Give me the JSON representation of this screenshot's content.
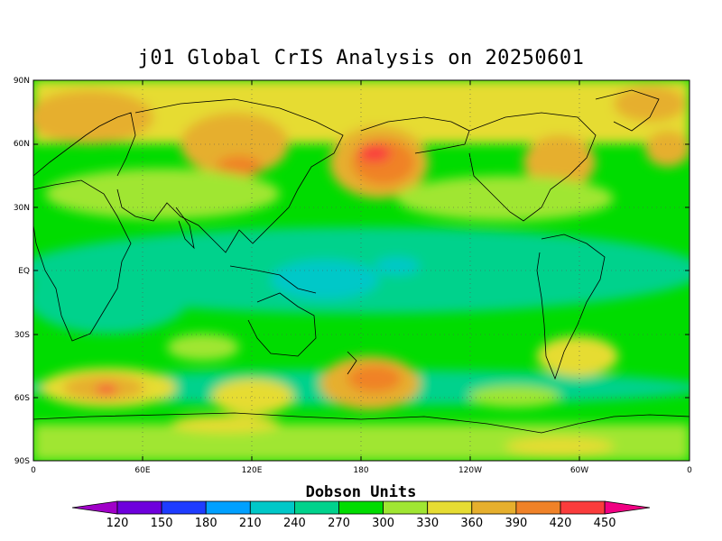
{
  "title": "j01 Global CrIS Analysis on 20250601",
  "map": {
    "lat_labels": [
      "90N",
      "60N",
      "30N",
      "EQ",
      "30S",
      "60S",
      "90S"
    ],
    "lon_labels": [
      "0",
      "60E",
      "120E",
      "180",
      "120W",
      "60W",
      "0"
    ],
    "grid": "dotted"
  },
  "colorbar": {
    "title": "Dobson Units",
    "ticks": [
      "120",
      "150",
      "180",
      "210",
      "240",
      "270",
      "300",
      "330",
      "360",
      "390",
      "420",
      "450"
    ],
    "colors": [
      "#a000c8",
      "#6e00dc",
      "#1e3cff",
      "#00a0ff",
      "#00c8c8",
      "#00d28c",
      "#00dc00",
      "#a0e632",
      "#e6dc32",
      "#e6af2d",
      "#f08228",
      "#fa3c3c",
      "#f00082"
    ]
  },
  "field_colors": {
    "240": "#00c8c8",
    "270": "#00d28c",
    "300": "#00dc00",
    "330": "#a0e632",
    "360": "#e6dc32",
    "390": "#e6af2d",
    "420": "#f08228",
    "450": "#fa3c3c"
  }
}
